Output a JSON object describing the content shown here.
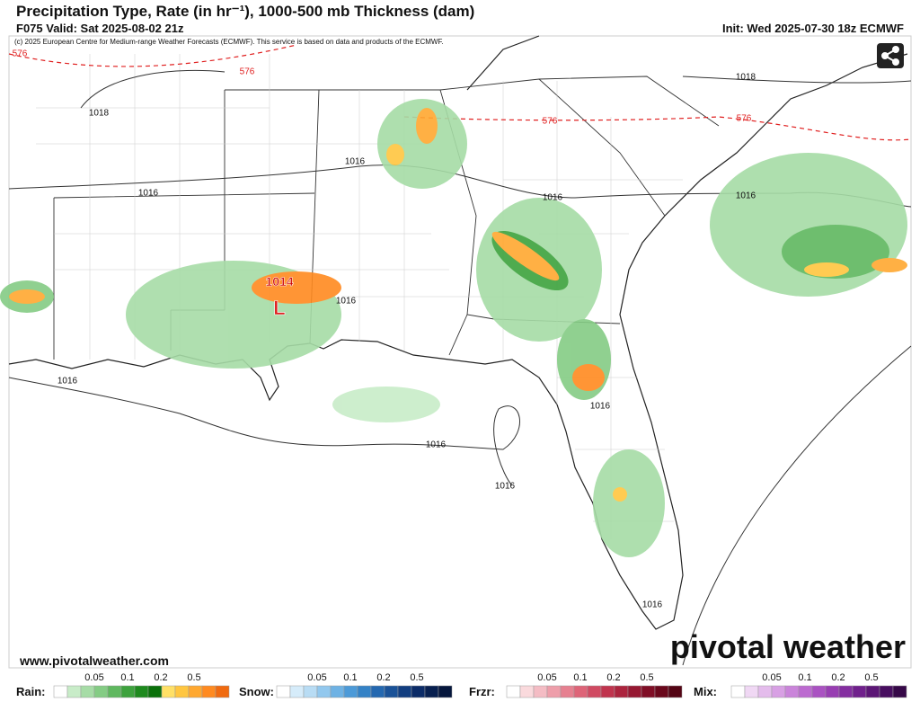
{
  "header": {
    "title": "Precipitation Type, Rate (in hr⁻¹), 1000-500 mb Thickness (dam)",
    "valid": "F075 Valid: Sat 2025-08-02 21z",
    "init": "Init: Wed 2025-07-30 18z ECMWF",
    "credit": "(c) 2025 European Centre for Medium-range Weather Forecasts (ECMWF). This service is based on data and products of the ECMWF."
  },
  "map": {
    "thickness_labels": [
      "576",
      "576",
      "576",
      "576"
    ],
    "pressure_labels": [
      "1018",
      "1018",
      "1016",
      "1016",
      "1016",
      "1016",
      "1016",
      "1016",
      "1016",
      "1016",
      "1016",
      "1016"
    ],
    "low": {
      "pressure": "1014",
      "symbol": "L"
    }
  },
  "footer": {
    "website": "www.pivotalweather.com",
    "logo": "pivotal weather"
  },
  "legend": [
    {
      "name": "Rain:",
      "ticks": [
        "0.05",
        "0.1",
        "0.2",
        "0.5"
      ],
      "colors": [
        "#ffffff",
        "#c8ecc8",
        "#a6dca6",
        "#84cc84",
        "#5fb85f",
        "#3da23d",
        "#1e8a1e",
        "#0a700a",
        "#ffe066",
        "#ffc640",
        "#ffa830",
        "#ff8a20",
        "#f06a10"
      ]
    },
    {
      "name": "Snow:",
      "ticks": [
        "0.05",
        "0.1",
        "0.2",
        "0.5"
      ],
      "colors": [
        "#ffffff",
        "#d6ecfa",
        "#b8dcf4",
        "#92c8ee",
        "#6eb2e4",
        "#4c9ad8",
        "#3482c6",
        "#2468b0",
        "#1a5298",
        "#123e80",
        "#0c2c68",
        "#082050",
        "#05163c"
      ]
    },
    {
      "name": "Frzr:",
      "ticks": [
        "0.05",
        "0.1",
        "0.2",
        "0.5"
      ],
      "colors": [
        "#ffffff",
        "#fadadd",
        "#f4bcc4",
        "#ee9eaa",
        "#e68090",
        "#de6478",
        "#d04a62",
        "#c0344e",
        "#ac243e",
        "#961832",
        "#800e26",
        "#6a081c",
        "#540414"
      ]
    },
    {
      "name": "Mix:",
      "ticks": [
        "0.05",
        "0.1",
        "0.2",
        "0.5"
      ],
      "colors": [
        "#ffffff",
        "#f0d8f4",
        "#e4bcec",
        "#d8a0e4",
        "#ca84da",
        "#bc6ad0",
        "#aa52c2",
        "#983eb2",
        "#842ea0",
        "#70208c",
        "#5c1676",
        "#480e60",
        "#360848"
      ]
    }
  ]
}
